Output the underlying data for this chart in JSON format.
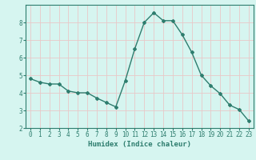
{
  "x": [
    0,
    1,
    2,
    3,
    4,
    5,
    6,
    7,
    8,
    9,
    10,
    11,
    12,
    13,
    14,
    15,
    16,
    17,
    18,
    19,
    20,
    21,
    22,
    23
  ],
  "y": [
    4.8,
    4.6,
    4.5,
    4.5,
    4.1,
    4.0,
    4.0,
    3.7,
    3.45,
    3.2,
    4.7,
    6.5,
    8.0,
    8.55,
    8.1,
    8.1,
    7.3,
    6.3,
    5.0,
    4.4,
    3.95,
    3.3,
    3.05,
    2.4
  ],
  "xlabel": "Humidex (Indice chaleur)",
  "ylim": [
    2,
    9
  ],
  "xlim": [
    -0.5,
    23.5
  ],
  "yticks": [
    2,
    3,
    4,
    5,
    6,
    7,
    8
  ],
  "xticks": [
    0,
    1,
    2,
    3,
    4,
    5,
    6,
    7,
    8,
    9,
    10,
    11,
    12,
    13,
    14,
    15,
    16,
    17,
    18,
    19,
    20,
    21,
    22,
    23
  ],
  "line_color": "#2e7d6e",
  "marker": "D",
  "marker_size": 2.0,
  "bg_color": "#d6f5f0",
  "grid_color": "#e8c8c8",
  "tick_color": "#2e7d6e",
  "label_color": "#2e7d6e",
  "linewidth": 1.0,
  "tick_fontsize": 5.5,
  "xlabel_fontsize": 6.5
}
